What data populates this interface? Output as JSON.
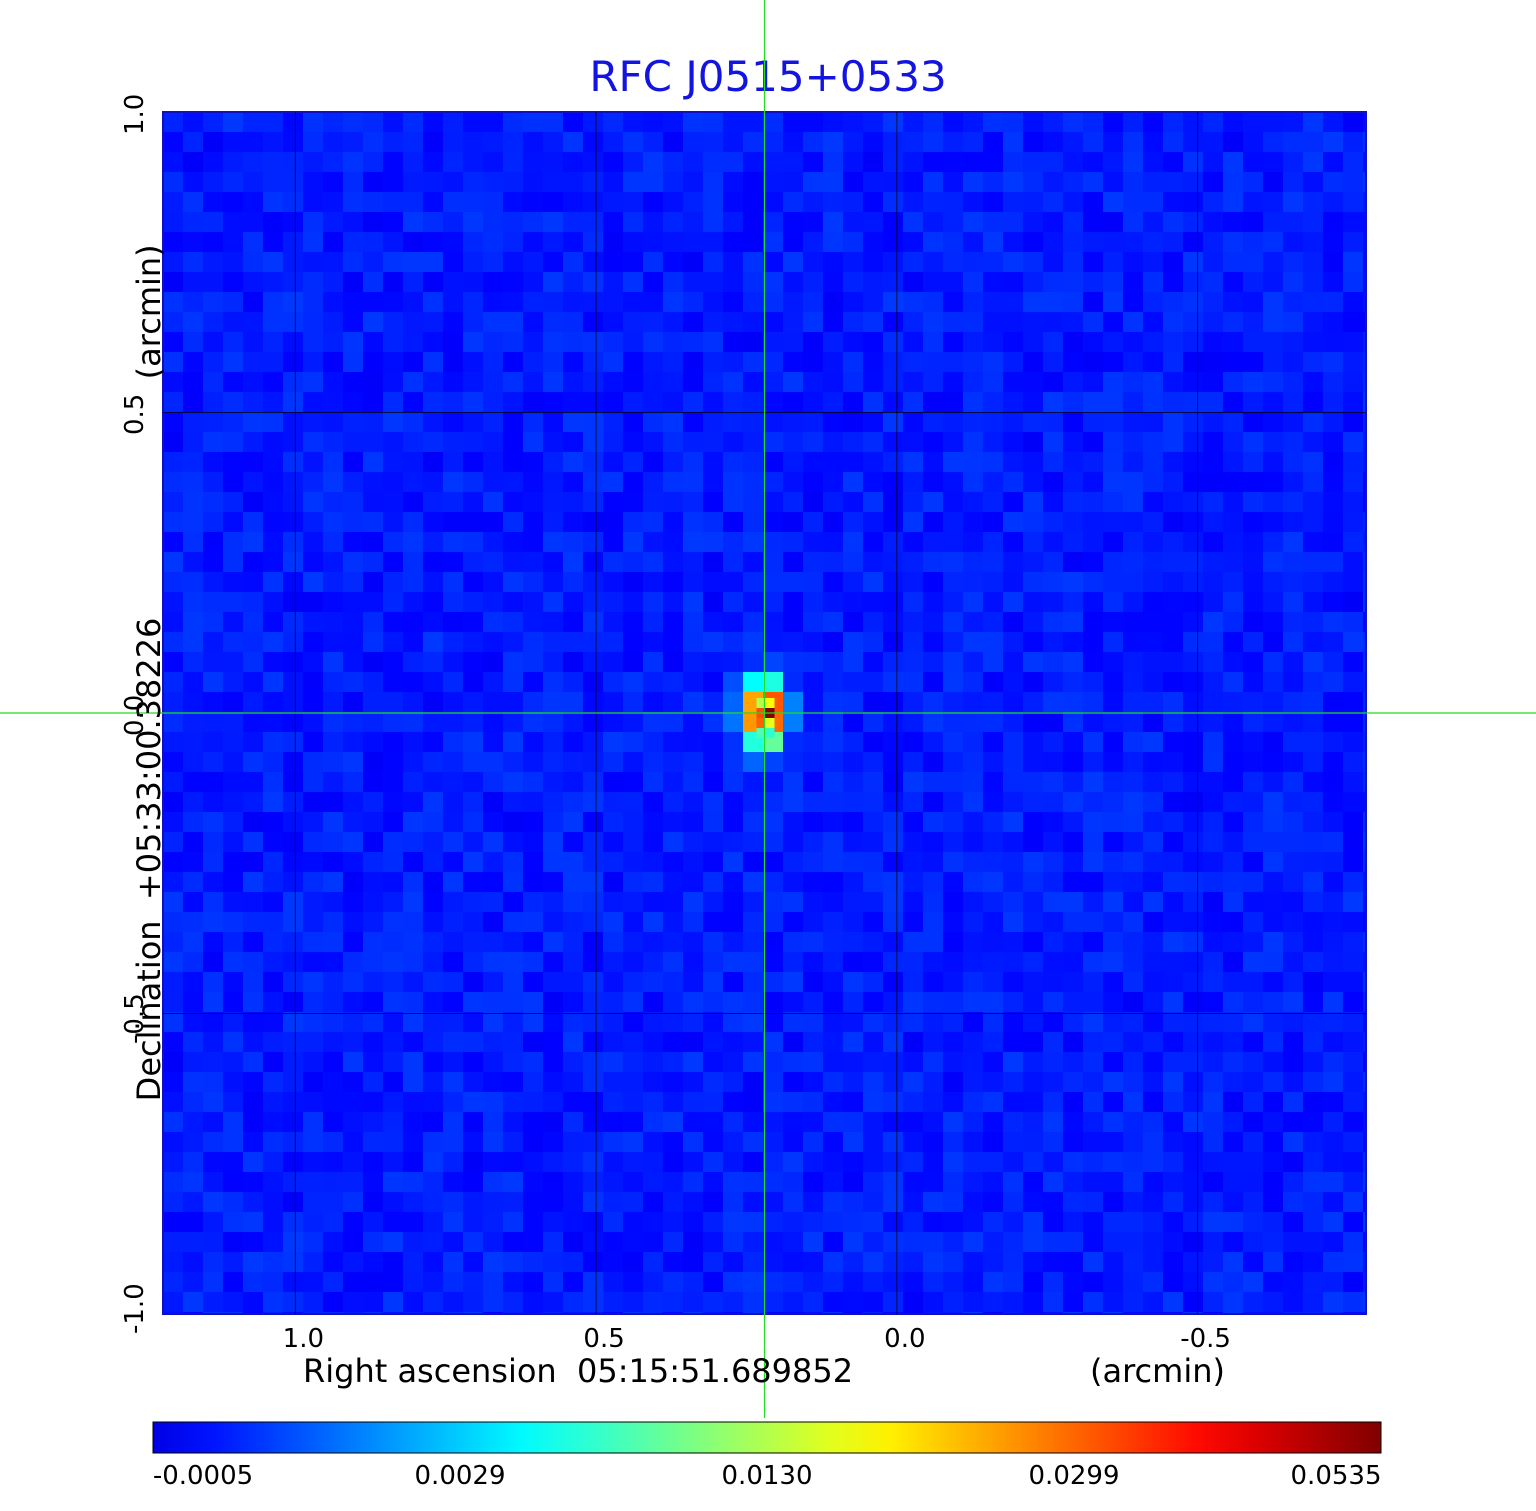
{
  "chart_data": {
    "type": "heatmap",
    "title": "RFC J0515+0533",
    "xlabel": "Right ascension  05:15:51.689852",
    "xlabel_unit": "(arcmin)",
    "ylabel": "Declination  +05:33:00.38226",
    "ylabel_unit": "(arcmin)",
    "x_ticks": [
      "1.0",
      "0.5",
      "0.0",
      "-0.5"
    ],
    "y_ticks": [
      "-1.0",
      "-0.5",
      "0.0",
      "0.5",
      "1.0"
    ],
    "xlim": [
      1.22,
      -0.78
    ],
    "ylim": [
      -1.0,
      1.0
    ],
    "grid": true,
    "crosshair": {
      "x": 0.22,
      "y": 0.0,
      "color": "#22dd22"
    },
    "source_peak": {
      "x": 0.22,
      "y": 0.0,
      "value": 0.0535
    },
    "colormap": "jet",
    "colorbar_ticks": [
      "-0.0005",
      "0.0029",
      "0.0130",
      "0.0299",
      "0.0535"
    ],
    "colorbar_range": [
      -0.0005,
      0.0535
    ],
    "background_color": "#1a3cf0"
  }
}
